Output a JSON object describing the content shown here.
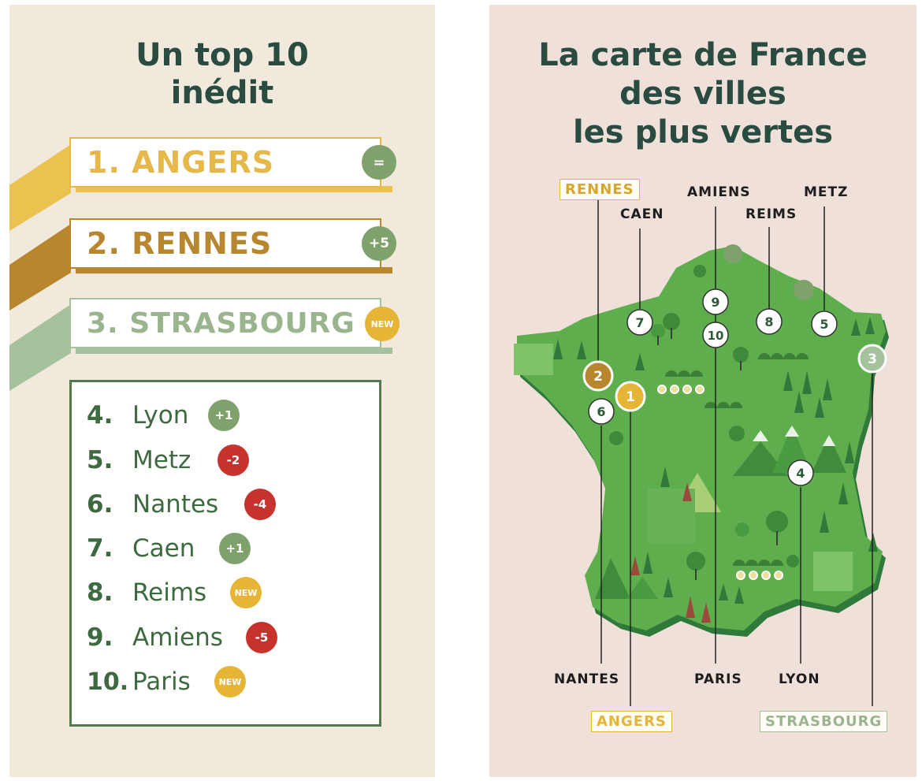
{
  "left": {
    "title_line1": "Un top 10",
    "title_line2": "inédit",
    "podium": [
      {
        "rank": "1.",
        "name": "ANGERS",
        "badge": "=",
        "color": "#e6b84a",
        "tail": "#e9c24f",
        "badge_color": "#7fa26c"
      },
      {
        "rank": "2.",
        "name": "RENNES",
        "badge": "+5",
        "color": "#b8862e",
        "tail": "#b8862e",
        "badge_color": "#7fa26c"
      },
      {
        "rank": "3.",
        "name": "STRASBOURG",
        "badge": "NEW",
        "color": "#9ab48d",
        "tail": "#a6c29c",
        "badge_color": "#e6b535"
      }
    ],
    "list": [
      {
        "rank": "4.",
        "name": "Lyon",
        "badge": "+1",
        "badge_color": "#7fa26c"
      },
      {
        "rank": "5.",
        "name": "Metz",
        "badge": "-2",
        "badge_color": "#c8322c"
      },
      {
        "rank": "6.",
        "name": "Nantes",
        "badge": "-4",
        "badge_color": "#c8322c"
      },
      {
        "rank": "7.",
        "name": "Caen",
        "badge": "+1",
        "badge_color": "#7fa26c"
      },
      {
        "rank": "8.",
        "name": "Reims",
        "badge": "NEW",
        "badge_color": "#e6b535"
      },
      {
        "rank": "9.",
        "name": "Amiens",
        "badge": "-5",
        "badge_color": "#c8322c"
      },
      {
        "rank": "10.",
        "name": "Paris",
        "badge": "NEW",
        "badge_color": "#e6b535"
      }
    ]
  },
  "right": {
    "title_line1": "La carte de France",
    "title_line2": "des villes",
    "title_line3": "les plus vertes",
    "labels": {
      "rennes": "RENNES",
      "caen": "CAEN",
      "amiens": "AMIENS",
      "reims": "REIMS",
      "metz": "METZ",
      "nantes": "NANTES",
      "paris": "PARIS",
      "lyon": "LYON",
      "angers": "ANGERS",
      "strasbourg": "STRASBOURG"
    },
    "markers": {
      "m1": "1",
      "m2": "2",
      "m3": "3",
      "m4": "4",
      "m5": "5",
      "m6": "6",
      "m7": "7",
      "m8": "8",
      "m9": "9",
      "m10": "10"
    }
  },
  "colors": {
    "title": "#2a4b3f",
    "map_green": "#5fae4e",
    "map_shadow": "#2f7a3a",
    "gold": "#e6b535",
    "brown": "#b8862e",
    "sage": "#a6c29c",
    "red": "#c8322c"
  }
}
